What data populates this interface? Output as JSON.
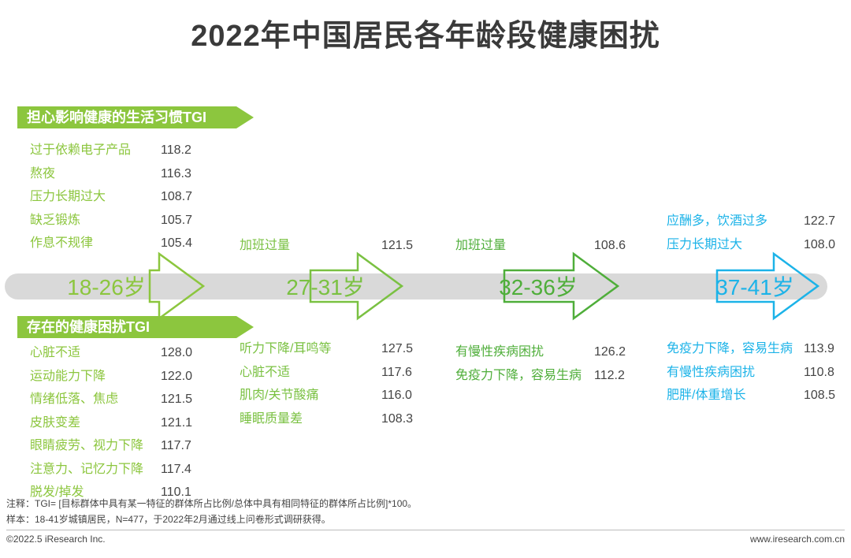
{
  "title": "2022年中国居民各年龄段健康困扰",
  "banners": {
    "habits": "担心影响健康的生活习惯TGI",
    "troubles": "存在的健康困扰TGI"
  },
  "chart_data": {
    "type": "table",
    "metric": "TGI",
    "age_groups": [
      {
        "age": "18-26岁",
        "color": "#8cc63e",
        "habits": [
          {
            "label": "过于依赖电子产品",
            "value": "118.2"
          },
          {
            "label": "熬夜",
            "value": "116.3"
          },
          {
            "label": "压力长期过大",
            "value": "108.7"
          },
          {
            "label": "缺乏锻炼",
            "value": "105.7"
          },
          {
            "label": "作息不规律",
            "value": "105.4"
          }
        ],
        "troubles": [
          {
            "label": "心脏不适",
            "value": "128.0"
          },
          {
            "label": "运动能力下降",
            "value": "122.0"
          },
          {
            "label": "情绪低落、焦虑",
            "value": "121.5"
          },
          {
            "label": "皮肤变差",
            "value": "121.1"
          },
          {
            "label": "眼睛疲劳、视力下降",
            "value": "117.7"
          },
          {
            "label": "注意力、记忆力下降",
            "value": "117.4"
          },
          {
            "label": "脱发/掉发",
            "value": "110.1"
          }
        ]
      },
      {
        "age": "27-31岁",
        "color": "#7ac142",
        "habits": [
          {
            "label": "加班过量",
            "value": "121.5"
          }
        ],
        "troubles": [
          {
            "label": "听力下降/耳鸣等",
            "value": "127.5"
          },
          {
            "label": "心脏不适",
            "value": "117.6"
          },
          {
            "label": "肌肉/关节酸痛",
            "value": "116.0"
          },
          {
            "label": "睡眠质量差",
            "value": "108.3"
          }
        ]
      },
      {
        "age": "32-36岁",
        "color": "#4fae3a",
        "habits": [
          {
            "label": "加班过量",
            "value": "108.6"
          }
        ],
        "troubles": [
          {
            "label": "有慢性疾病困扰",
            "value": "126.2"
          },
          {
            "label": "免疫力下降，容易生病",
            "value": "112.2"
          }
        ]
      },
      {
        "age": "37-41岁",
        "color": "#1cb3e8",
        "habits": [
          {
            "label": "应酬多，饮酒过多",
            "value": "122.7"
          },
          {
            "label": "压力长期过大",
            "value": "108.0"
          }
        ],
        "troubles": [
          {
            "label": "免疫力下降，容易生病",
            "value": "113.9"
          },
          {
            "label": "有慢性疾病困扰",
            "value": "110.8"
          },
          {
            "label": "肥胖/体重增长",
            "value": "108.5"
          }
        ]
      }
    ]
  },
  "notes": {
    "note1": "注释：TGI= [目标群体中具有某一特征的群体所占比例/总体中具有相同特征的群体所占比例]*100。",
    "note2": "样本：18-41岁城镇居民，N=477，于2022年2月通过线上问卷形式调研获得。"
  },
  "footer": {
    "copyright": "©2022.5 iResearch Inc.",
    "website": "www.iresearch.com.cn"
  }
}
